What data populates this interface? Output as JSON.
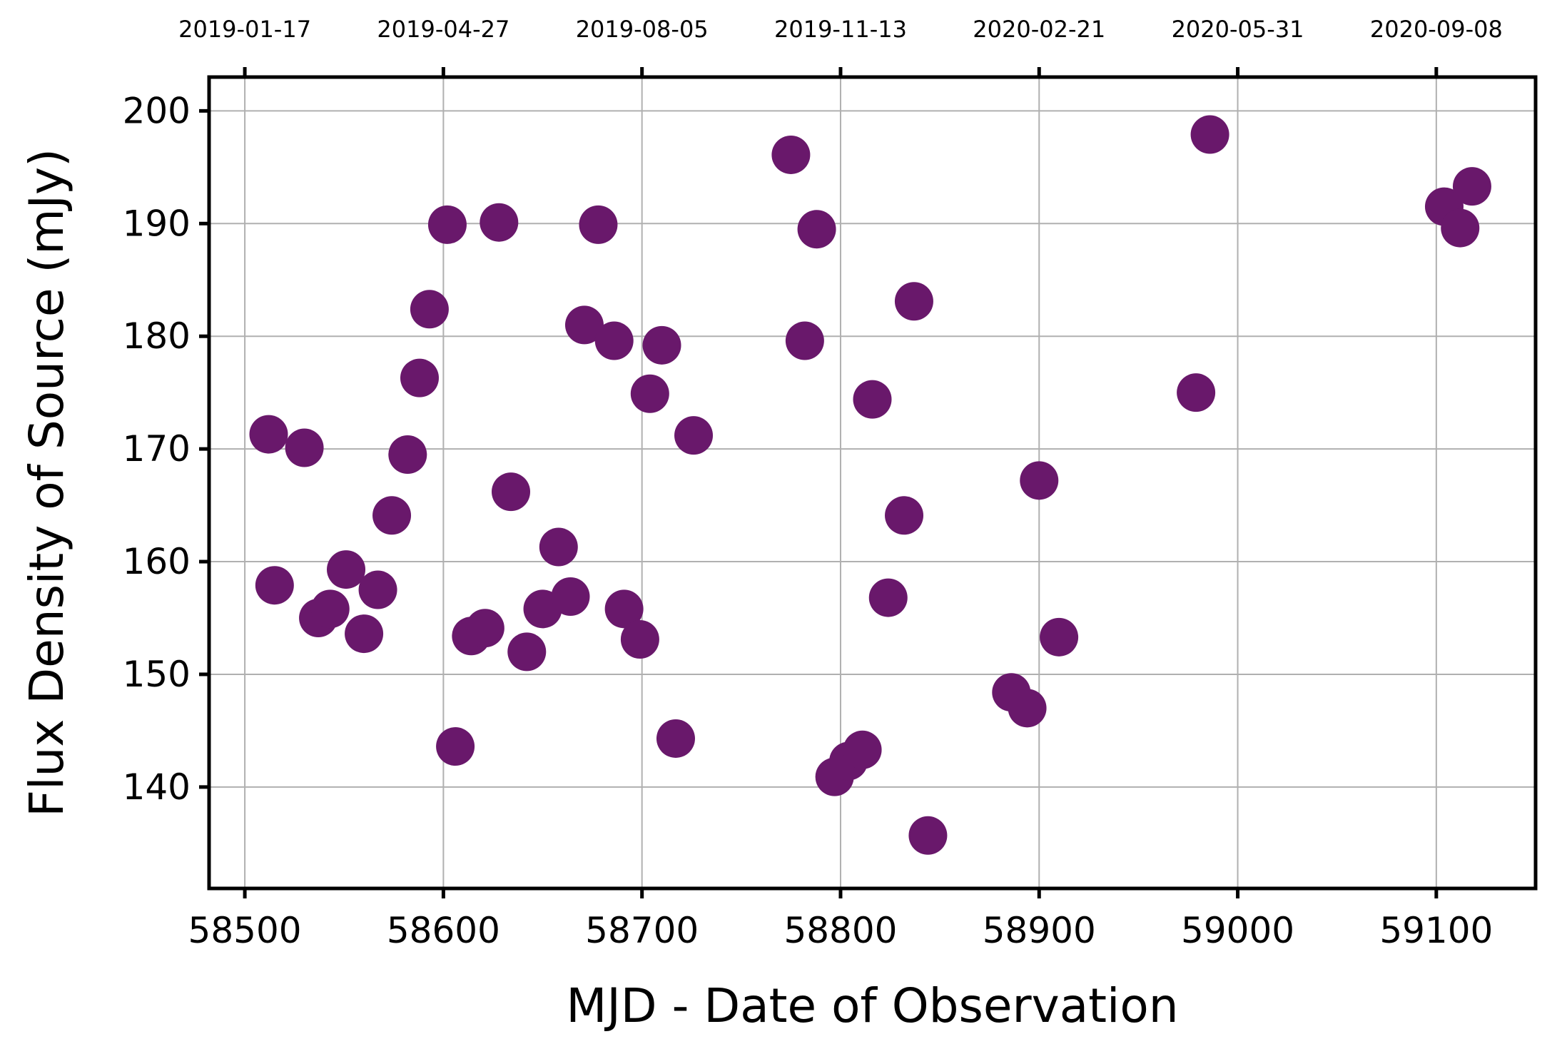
{
  "chart_data": {
    "type": "scatter",
    "xlabel": "MJD - Date of Observation",
    "ylabel": "Flux Density of Source (mJy)",
    "xlim": [
      58482,
      59150
    ],
    "ylim": [
      131,
      203
    ],
    "grid": true,
    "marker_color": "#69186b",
    "x_ticks": [
      58500,
      58600,
      58700,
      58800,
      58900,
      59000,
      59100
    ],
    "y_ticks": [
      140,
      150,
      160,
      170,
      180,
      190,
      200
    ],
    "top_ticks": [
      {
        "x": 58500,
        "label": "2019-01-17"
      },
      {
        "x": 58600,
        "label": "2019-04-27"
      },
      {
        "x": 58700,
        "label": "2019-08-05"
      },
      {
        "x": 58800,
        "label": "2019-11-13"
      },
      {
        "x": 58900,
        "label": "2020-02-21"
      },
      {
        "x": 59000,
        "label": "2020-05-31"
      },
      {
        "x": 59100,
        "label": "2020-09-08"
      }
    ],
    "points": [
      [
        58512,
        171.3
      ],
      [
        58515,
        157.9
      ],
      [
        58530,
        170.1
      ],
      [
        58537,
        155.0
      ],
      [
        58543,
        155.8
      ],
      [
        58551,
        159.3
      ],
      [
        58560,
        153.6
      ],
      [
        58567,
        157.5
      ],
      [
        58574,
        164.1
      ],
      [
        58582,
        169.5
      ],
      [
        58588,
        176.3
      ],
      [
        58593,
        182.4
      ],
      [
        58602,
        189.9
      ],
      [
        58606,
        143.6
      ],
      [
        58614,
        153.4
      ],
      [
        58621,
        154.1
      ],
      [
        58628,
        190.1
      ],
      [
        58634,
        166.2
      ],
      [
        58642,
        152.0
      ],
      [
        58650,
        155.8
      ],
      [
        58658,
        161.3
      ],
      [
        58664,
        156.9
      ],
      [
        58671,
        181.0
      ],
      [
        58678,
        189.9
      ],
      [
        58686,
        179.6
      ],
      [
        58691,
        155.8
      ],
      [
        58699,
        153.1
      ],
      [
        58704,
        174.9
      ],
      [
        58710,
        179.2
      ],
      [
        58717,
        144.3
      ],
      [
        58726,
        171.2
      ],
      [
        58775,
        196.1
      ],
      [
        58782,
        179.6
      ],
      [
        58788,
        189.5
      ],
      [
        58797,
        140.9
      ],
      [
        58804,
        142.3
      ],
      [
        58811,
        143.3
      ],
      [
        58816,
        174.4
      ],
      [
        58824,
        156.8
      ],
      [
        58832,
        164.1
      ],
      [
        58837,
        183.1
      ],
      [
        58844,
        135.7
      ],
      [
        58886,
        148.4
      ],
      [
        58894,
        147.0
      ],
      [
        58900,
        167.2
      ],
      [
        58910,
        153.3
      ],
      [
        58979,
        175.0
      ],
      [
        58986,
        197.9
      ],
      [
        59104,
        191.5
      ],
      [
        59112,
        189.6
      ],
      [
        59118,
        193.3
      ]
    ]
  }
}
